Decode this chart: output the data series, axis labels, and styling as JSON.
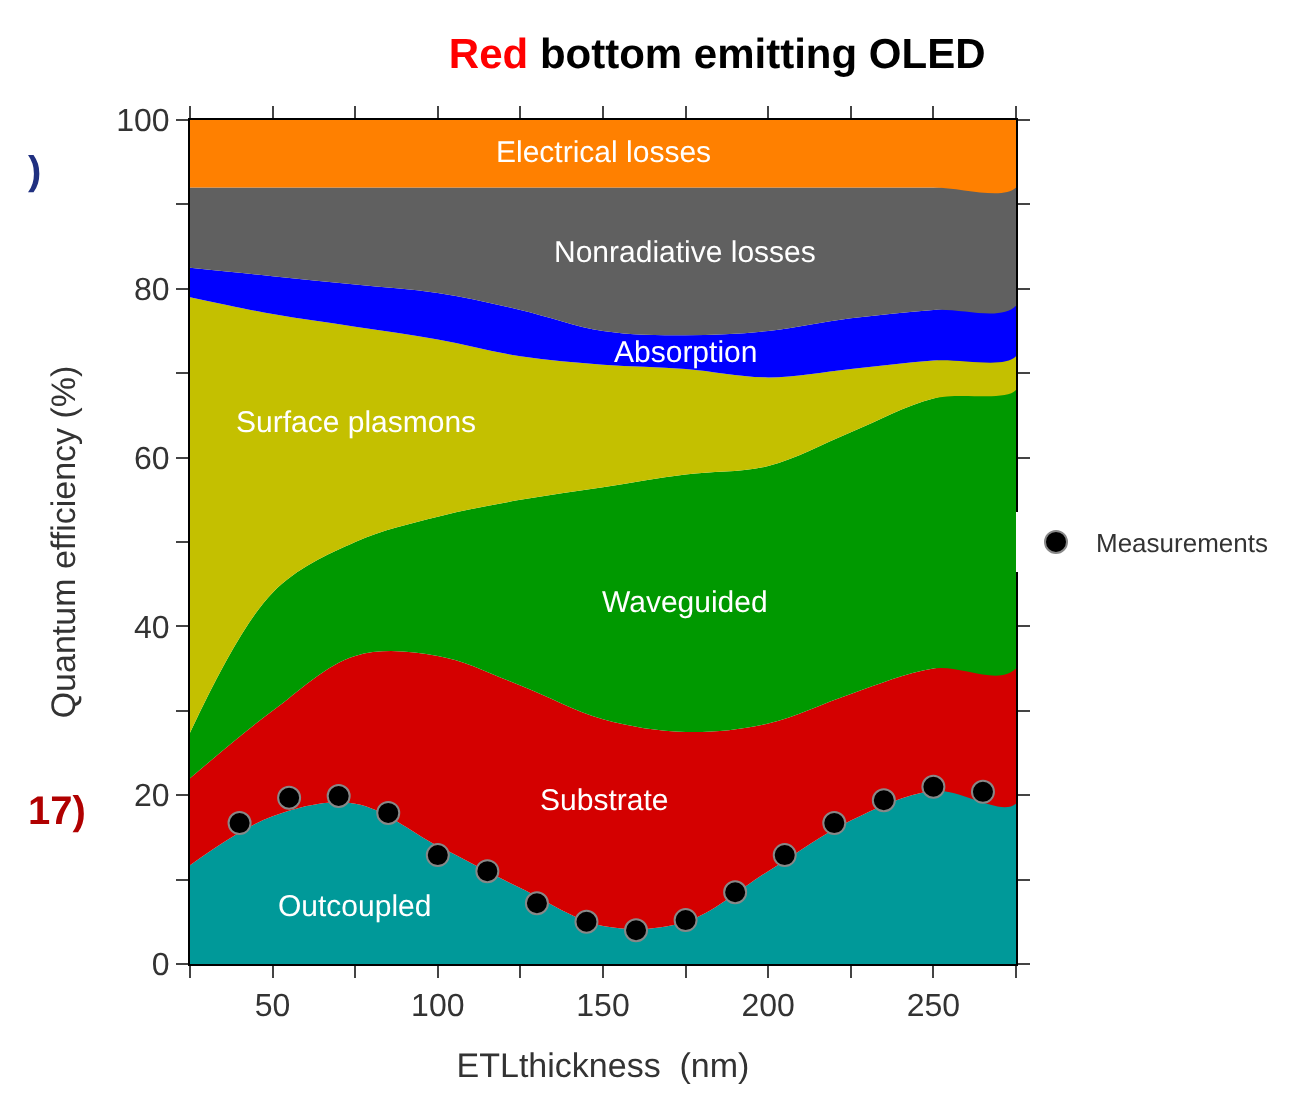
{
  "chart_data": {
    "type": "area",
    "stacked": true,
    "title": "Red bottom emitting OLED",
    "xlabel": "ETLthickness  (nm)",
    "ylabel": "Quantum efficiency (%)",
    "x": [
      25,
      50,
      75,
      100,
      125,
      150,
      175,
      200,
      225,
      250,
      275
    ],
    "series": [
      {
        "name": "Outcoupled",
        "color": "#009999",
        "values": [
          11.7,
          17.5,
          19,
          14,
          9,
          4.5,
          5,
          11,
          17,
          20.5,
          19
        ]
      },
      {
        "name": "Substrate",
        "color": "#d40000",
        "values": [
          10.3,
          12.5,
          17.5,
          22.5,
          24,
          24.5,
          22.5,
          17.5,
          15,
          14.5,
          16
        ]
      },
      {
        "name": "Waveguided",
        "color": "#009900",
        "values": [
          5.4,
          14,
          13.5,
          16.5,
          22,
          27.5,
          30.5,
          30.5,
          31,
          32,
          33
        ]
      },
      {
        "name": "Surface plasmons",
        "color": "#c4c000",
        "values": [
          51.6,
          33,
          25.5,
          21,
          17,
          14.5,
          12.5,
          10.5,
          7.5,
          4.5,
          4
        ]
      },
      {
        "name": "Absorption",
        "color": "#0000ff",
        "values": [
          3.5,
          4.5,
          5,
          5.5,
          5.5,
          4,
          4,
          5.5,
          6,
          6,
          6
        ]
      },
      {
        "name": "Nonradiative losses",
        "color": "#606060",
        "values": [
          9.5,
          10.5,
          11.5,
          12.5,
          14.5,
          17,
          17.5,
          17,
          15.5,
          14.5,
          14
        ]
      },
      {
        "name": "Electrical losses",
        "color": "#ff8000",
        "values": [
          8,
          8,
          8,
          8,
          8,
          8,
          8,
          8,
          8,
          8,
          8
        ]
      },
      {
        "name": "Measurements",
        "type": "scatter",
        "marker": "circle",
        "color": "#000000",
        "x": [
          40,
          55,
          70,
          85,
          100,
          115,
          130,
          145,
          160,
          175,
          190,
          205,
          220,
          235,
          250,
          265
        ],
        "values": [
          16.7,
          19.7,
          19.9,
          17.9,
          12.9,
          11,
          7.2,
          5,
          4,
          5.2,
          8.5,
          12.9,
          16.7,
          19.4,
          21,
          20.4
        ]
      }
    ],
    "xlim": [
      25,
      275
    ],
    "ylim": [
      0,
      100
    ],
    "xticks": [
      {
        "value": 25,
        "label": null
      },
      50,
      {
        "value": 75,
        "label": null
      },
      100,
      {
        "value": 125,
        "label": null
      },
      150,
      {
        "value": 175,
        "label": null
      },
      200,
      {
        "value": 225,
        "label": null
      },
      250,
      {
        "value": 275,
        "label": null
      }
    ],
    "yticks": [
      0,
      {
        "value": 10,
        "label": null
      },
      20,
      {
        "value": 30,
        "label": null
      },
      40,
      {
        "value": 50,
        "label": null
      },
      60,
      {
        "value": 70,
        "label": null
      },
      80,
      {
        "value": 90,
        "label": null
      },
      100
    ],
    "annotations": [
      ")",
      "17)"
    ],
    "legend": "right"
  }
}
